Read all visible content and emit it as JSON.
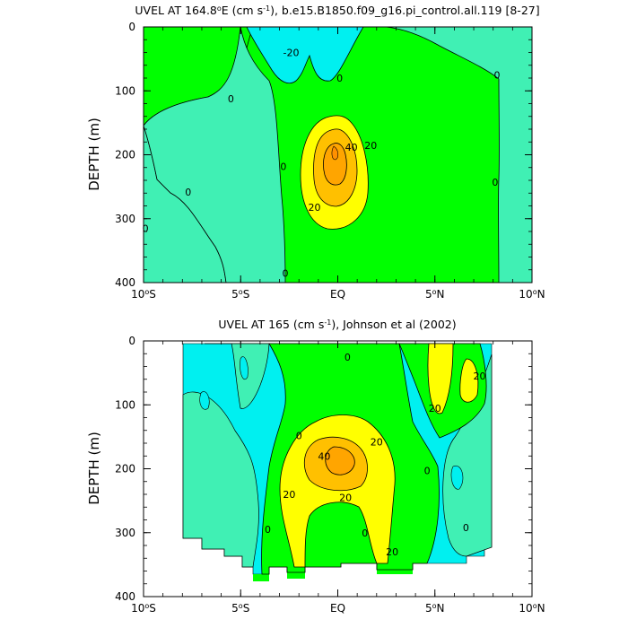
{
  "chart_data": [
    {
      "type": "contour",
      "title_pre": "UVEL AT 164.8",
      "title_deg": "o",
      "title_mid": "E (cm s",
      "title_exp": "-1",
      "title_post": "), b.e15.B1850.f09_g16.pi_control.all.119 [8-27]",
      "ylabel": "DEPTH (m)",
      "xlim": [
        -10,
        10
      ],
      "ylim": [
        0,
        400
      ],
      "x_ticks": [
        {
          "value": -10,
          "num": "10",
          "suffix": "S",
          "deg": "o"
        },
        {
          "value": -5,
          "num": "5",
          "suffix": "S",
          "deg": "o"
        },
        {
          "value": 0,
          "num": "EQ",
          "suffix": "",
          "deg": ""
        },
        {
          "value": 5,
          "num": "5",
          "suffix": "N",
          "deg": "o"
        },
        {
          "value": 10,
          "num": "10",
          "suffix": "N",
          "deg": "o"
        }
      ],
      "y_ticks": [
        {
          "value": 0,
          "label": "0"
        },
        {
          "value": 100,
          "label": "100"
        },
        {
          "value": 200,
          "label": "200"
        },
        {
          "value": 300,
          "label": "300"
        },
        {
          "value": 400,
          "label": "400"
        }
      ],
      "contour_levels": [
        -20,
        0,
        20,
        40,
        50
      ],
      "fill_colors": [
        "#00f0f0",
        "#40f0b4",
        "#00ff00",
        "#ffff00",
        "#ffc000",
        "#ffa500"
      ],
      "contour_labels": [
        {
          "text": "-20",
          "lat": -2.4,
          "depth": 40
        },
        {
          "text": "0",
          "lat": 0.1,
          "depth": 80
        },
        {
          "text": "0",
          "lat": 8.2,
          "depth": 75
        },
        {
          "text": "0",
          "lat": -5.5,
          "depth": 112
        },
        {
          "text": "0",
          "lat": -2.8,
          "depth": 218
        },
        {
          "text": "0",
          "lat": -7.7,
          "depth": 258
        },
        {
          "text": "0",
          "lat": -9.9,
          "depth": 315
        },
        {
          "text": "0",
          "lat": -2.7,
          "depth": 385
        },
        {
          "text": "0",
          "lat": 8.1,
          "depth": 243
        },
        {
          "text": "40",
          "lat": 0.7,
          "depth": 188
        },
        {
          "text": "20",
          "lat": 1.7,
          "depth": 185
        },
        {
          "text": "20",
          "lat": -1.2,
          "depth": 282
        }
      ]
    },
    {
      "type": "contour",
      "title_pre": "UVEL AT 165 (cm s",
      "title_exp": "-1",
      "title_post": "), Johnson et al (2002)",
      "ylabel": "DEPTH (m)",
      "xlim": [
        -10,
        10
      ],
      "ylim": [
        0,
        400
      ],
      "x_ticks": [
        {
          "value": -10,
          "num": "10",
          "suffix": "S",
          "deg": "o"
        },
        {
          "value": -5,
          "num": "5",
          "suffix": "S",
          "deg": "o"
        },
        {
          "value": 0,
          "num": "EQ",
          "suffix": "",
          "deg": ""
        },
        {
          "value": 5,
          "num": "5",
          "suffix": "N",
          "deg": "o"
        },
        {
          "value": 10,
          "num": "10",
          "suffix": "N",
          "deg": "o"
        }
      ],
      "y_ticks": [
        {
          "value": 0,
          "label": "0"
        },
        {
          "value": 100,
          "label": "100"
        },
        {
          "value": 200,
          "label": "200"
        },
        {
          "value": 300,
          "label": "300"
        },
        {
          "value": 400,
          "label": "400"
        }
      ],
      "data_extent_lat": [
        -8,
        8
      ],
      "contour_levels": [
        -20,
        0,
        20,
        40,
        50
      ],
      "fill_colors": [
        "#00f0f0",
        "#40f0b4",
        "#00ff00",
        "#ffff00",
        "#ffc000",
        "#ffa500"
      ],
      "contour_labels": [
        {
          "text": "0",
          "lat": 0.5,
          "depth": 25
        },
        {
          "text": "0",
          "lat": -2.0,
          "depth": 148
        },
        {
          "text": "20",
          "lat": 2.0,
          "depth": 158
        },
        {
          "text": "40",
          "lat": -0.7,
          "depth": 180
        },
        {
          "text": "20",
          "lat": -2.5,
          "depth": 240
        },
        {
          "text": "20",
          "lat": 0.4,
          "depth": 245
        },
        {
          "text": "0",
          "lat": 4.6,
          "depth": 203
        },
        {
          "text": "20",
          "lat": 7.3,
          "depth": 55
        },
        {
          "text": "20",
          "lat": 5.0,
          "depth": 105
        },
        {
          "text": "0",
          "lat": -3.6,
          "depth": 295
        },
        {
          "text": "0",
          "lat": 1.4,
          "depth": 300
        },
        {
          "text": "0",
          "lat": 6.6,
          "depth": 292
        },
        {
          "text": "20",
          "lat": 2.8,
          "depth": 330
        }
      ]
    }
  ]
}
